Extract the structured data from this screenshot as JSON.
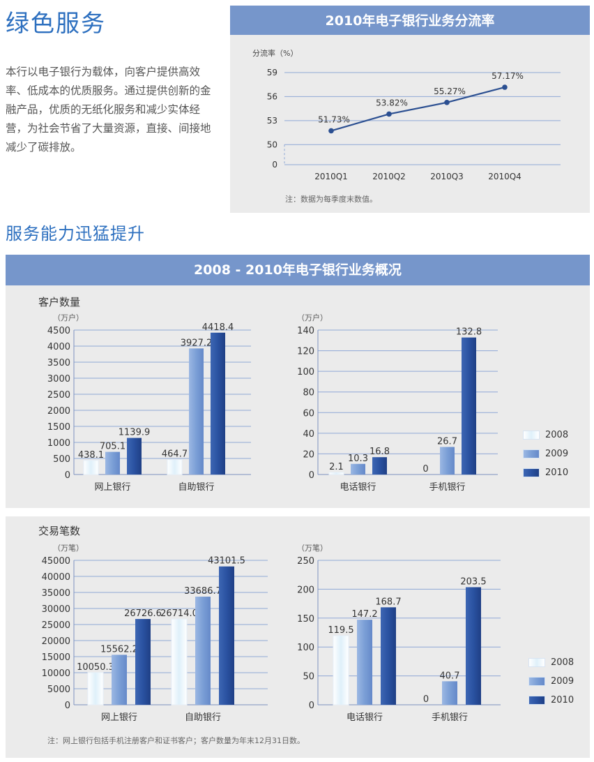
{
  "page": {
    "title": "绿色服务",
    "intro": "本行以电子银行为载体，向客户提供高效率、低成本的优质服务。通过提供创新的金融产品，优质的无纸化服务和减少实体经营，为社会节省了大量资源，直接、间接地减少了碳排放。",
    "subtitle": "服务能力迅猛提升",
    "top_banner": "2010年电子银行业务分流率",
    "main_banner": "2008 - 2010年电子银行业务概况",
    "group1_label": "客户数量",
    "group2_label": "交易笔数",
    "note_top": "注：数据为每季度末数值。",
    "note_bottom": "注：网上银行包括手机注册客户和证书客户；客户数量为年末12月31日数。"
  },
  "colors": {
    "banner": "#7696cb",
    "panel": "#ebebeb",
    "line": "#2b4f91",
    "series_2008": "#dff0fa",
    "series_2009": "#7b9fd6",
    "series_2010": "#2a52a1",
    "grid": "#8fa8d6"
  },
  "chart_data": [
    {
      "id": "diversion",
      "type": "line",
      "title": "2010年电子银行业务分流率",
      "ylabel": "分流率（%）",
      "categories": [
        "2010Q1",
        "2010Q2",
        "2010Q3",
        "2010Q4"
      ],
      "values": [
        51.73,
        53.82,
        55.27,
        57.17
      ],
      "labels": [
        "51.73%",
        "53.82%",
        "55.27%",
        "57.17%"
      ],
      "yticks": [
        "59",
        "56",
        "53",
        "50",
        "0"
      ],
      "ylim": [
        47.5,
        59
      ],
      "axis_break": true
    },
    {
      "id": "customers_large",
      "type": "bar",
      "ylabel": "（万户）",
      "categories": [
        "网上银行",
        "自助银行"
      ],
      "series": [
        {
          "name": "2008",
          "values": [
            438.1,
            464.7
          ]
        },
        {
          "name": "2009",
          "values": [
            705.1,
            3927.2
          ]
        },
        {
          "name": "2010",
          "values": [
            1139.9,
            4418.4
          ]
        }
      ],
      "labels": [
        [
          "438.1",
          "705.1",
          "1139.9"
        ],
        [
          "464.7",
          "3927.2",
          "4418.4"
        ]
      ],
      "yticks": [
        "4500",
        "4000",
        "3500",
        "3000",
        "2500",
        "2000",
        "1500",
        "1000",
        "500",
        "0"
      ],
      "ylim": [
        0,
        4500
      ]
    },
    {
      "id": "customers_small",
      "type": "bar",
      "ylabel": "（万户）",
      "categories": [
        "电话银行",
        "手机银行"
      ],
      "series": [
        {
          "name": "2008",
          "values": [
            2.1,
            0
          ]
        },
        {
          "name": "2009",
          "values": [
            10.3,
            26.7
          ]
        },
        {
          "name": "2010",
          "values": [
            16.8,
            132.8
          ]
        }
      ],
      "labels": [
        [
          "2.1",
          "10.3",
          "16.8"
        ],
        [
          "0",
          "26.7",
          "132.8"
        ]
      ],
      "yticks": [
        "140",
        "120",
        "100",
        "80",
        "60",
        "40",
        "20",
        "0"
      ],
      "ylim": [
        0,
        140
      ]
    },
    {
      "id": "transactions_large",
      "type": "bar",
      "ylabel": "（万笔）",
      "categories": [
        "网上银行",
        "自助银行"
      ],
      "series": [
        {
          "name": "2008",
          "values": [
            10050.3,
            26714.0
          ]
        },
        {
          "name": "2009",
          "values": [
            15562.2,
            33686.7
          ]
        },
        {
          "name": "2010",
          "values": [
            26726.6,
            43101.5
          ]
        }
      ],
      "labels": [
        [
          "10050.3",
          "15562.2",
          "26726.6"
        ],
        [
          "26714.0",
          "33686.7",
          "43101.5"
        ]
      ],
      "yticks": [
        "45000",
        "40000",
        "35000",
        "30000",
        "25000",
        "20000",
        "15000",
        "10000",
        "5000",
        "0"
      ],
      "ylim": [
        0,
        45000
      ]
    },
    {
      "id": "transactions_small",
      "type": "bar",
      "ylabel": "（万笔）",
      "categories": [
        "电话银行",
        "手机银行"
      ],
      "series": [
        {
          "name": "2008",
          "values": [
            119.5,
            0
          ]
        },
        {
          "name": "2009",
          "values": [
            147.2,
            40.7
          ]
        },
        {
          "name": "2010",
          "values": [
            168.7,
            203.5
          ]
        }
      ],
      "labels": [
        [
          "119.5",
          "147.2",
          "168.7"
        ],
        [
          "0",
          "40.7",
          "203.5"
        ]
      ],
      "yticks": [
        "250",
        "200",
        "150",
        "100",
        "50",
        "0"
      ],
      "ylim": [
        0,
        250
      ]
    }
  ],
  "legends": [
    {
      "items": [
        "2008",
        "2009",
        "2010"
      ]
    },
    {
      "items": [
        "2008",
        "2009",
        "2010"
      ]
    }
  ]
}
